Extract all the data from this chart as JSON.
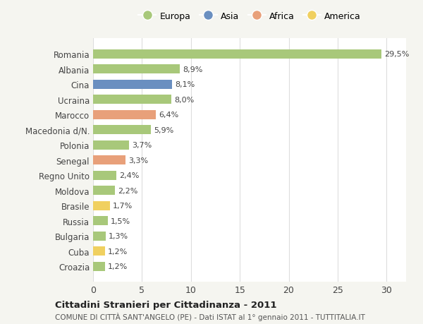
{
  "countries": [
    "Romania",
    "Albania",
    "Cina",
    "Ucraina",
    "Marocco",
    "Macedonia d/N.",
    "Polonia",
    "Senegal",
    "Regno Unito",
    "Moldova",
    "Brasile",
    "Russia",
    "Bulgaria",
    "Cuba",
    "Croazia"
  ],
  "values": [
    29.5,
    8.9,
    8.1,
    8.0,
    6.4,
    5.9,
    3.7,
    3.3,
    2.4,
    2.2,
    1.7,
    1.5,
    1.3,
    1.2,
    1.2
  ],
  "labels": [
    "29,5%",
    "8,9%",
    "8,1%",
    "8,0%",
    "6,4%",
    "5,9%",
    "3,7%",
    "3,3%",
    "2,4%",
    "2,2%",
    "1,7%",
    "1,5%",
    "1,3%",
    "1,2%",
    "1,2%"
  ],
  "continents": [
    "Europa",
    "Europa",
    "Asia",
    "Europa",
    "Africa",
    "Europa",
    "Europa",
    "Africa",
    "Europa",
    "Europa",
    "America",
    "Europa",
    "Europa",
    "America",
    "Europa"
  ],
  "colors": {
    "Europa": "#a8c87a",
    "Asia": "#6a8fc0",
    "Africa": "#e8a07a",
    "America": "#f0d060"
  },
  "legend_order": [
    "Europa",
    "Asia",
    "Africa",
    "America"
  ],
  "bg_color": "#f5f5f0",
  "bar_bg": "#ffffff",
  "grid_color": "#dddddd",
  "text_color": "#444444",
  "title_bold": "Cittadini Stranieri per Cittadinanza - 2011",
  "subtitle": "COMUNE DI CITTÀ SANT'ANGELO (PE) - Dati ISTAT al 1° gennaio 2011 - TUTTITALIA.IT",
  "xlim": [
    0,
    32
  ],
  "xticks": [
    0,
    5,
    10,
    15,
    20,
    25,
    30
  ]
}
